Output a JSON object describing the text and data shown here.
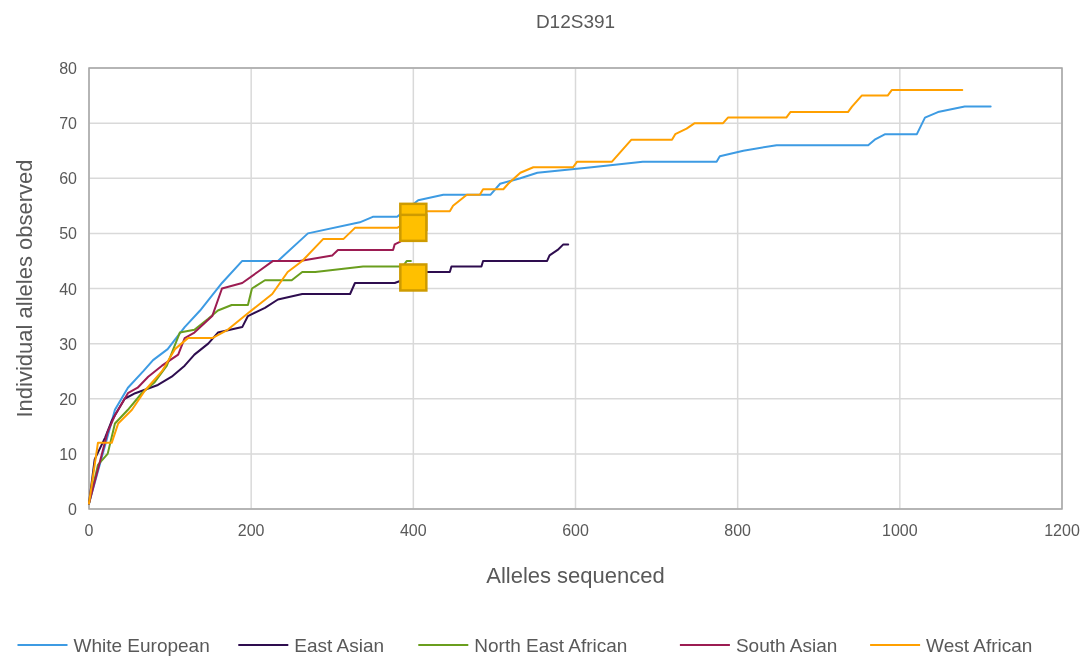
{
  "chart_data": {
    "type": "line",
    "title": "D12S391",
    "xlabel": "Alleles sequenced",
    "ylabel": "Individual alleles observed",
    "xlim": [
      0,
      1200
    ],
    "ylim": [
      0,
      80
    ],
    "xticks": [
      0,
      200,
      400,
      600,
      800,
      1000,
      1200
    ],
    "yticks": [
      0,
      10,
      20,
      30,
      40,
      50,
      60,
      70,
      80
    ],
    "grid": true,
    "legend": "bottom",
    "marker": "none",
    "line_style": "solid",
    "series": [
      {
        "name": "White European",
        "color": "#3d9be3",
        "x": [
          0,
          32,
          48,
          67,
          79,
          97,
          118,
          137,
          164,
          189,
          233,
          270,
          334,
          350,
          380,
          406,
          437,
          495,
          507,
          532,
          553,
          620,
          683,
          774,
          778,
          807,
          848,
          961,
          969,
          982,
          1021,
          1031,
          1047,
          1080,
          1112
        ],
        "values": [
          1,
          18,
          22,
          25,
          27,
          29,
          33,
          36,
          41,
          45,
          45,
          50,
          52,
          53,
          53,
          56,
          57,
          57,
          59,
          60,
          61,
          62,
          63,
          63,
          64,
          65,
          66,
          66,
          67,
          68,
          68,
          71,
          72,
          73,
          73
        ]
      },
      {
        "name": "East Asian",
        "color": "#2e0d4f",
        "x": [
          0,
          7,
          20,
          28,
          44,
          57,
          85,
          102,
          118,
          130,
          147,
          159,
          189,
          196,
          217,
          233,
          263,
          322,
          328,
          377,
          414,
          445,
          447,
          484,
          486,
          565,
          568,
          578,
          585,
          591
        ],
        "values": [
          1,
          9,
          13,
          16,
          20,
          21,
          22.5,
          24,
          26,
          28,
          30,
          32,
          33,
          35,
          36.5,
          38,
          39,
          39,
          41,
          41,
          43,
          43,
          44,
          44,
          45,
          45,
          46,
          47,
          48,
          48
        ]
      },
      {
        "name": "North East African",
        "color": "#6a9e1e",
        "x": [
          0,
          11,
          23,
          32,
          48,
          65,
          81,
          96,
          112,
          130,
          147,
          159,
          176,
          196,
          201,
          217,
          250,
          263,
          279,
          338,
          387,
          392,
          397
        ],
        "values": [
          1,
          8,
          10,
          15.5,
          18,
          21,
          23,
          26,
          32,
          32.5,
          34.5,
          36,
          37,
          37,
          40,
          41.5,
          41.5,
          43,
          43,
          44,
          44,
          45,
          45
        ]
      },
      {
        "name": "South Asian",
        "color": "#9c1c52",
        "x": [
          0,
          16,
          23,
          32,
          48,
          60,
          73,
          90,
          110,
          118,
          130,
          152,
          164,
          189,
          208,
          227,
          260,
          300,
          307,
          375,
          377,
          384,
          387
        ],
        "values": [
          1,
          10,
          14,
          17,
          21,
          22,
          24,
          26,
          28,
          31,
          32,
          35,
          40,
          41,
          43,
          45,
          45,
          46,
          47,
          47,
          48,
          48.5,
          49
        ]
      },
      {
        "name": "West African",
        "color": "#ffa000",
        "x": [
          0,
          11,
          28,
          36,
          53,
          69,
          90,
          106,
          122,
          152,
          171,
          196,
          226,
          245,
          263,
          289,
          314,
          328,
          380,
          417,
          445,
          449,
          466,
          482,
          486,
          511,
          517,
          532,
          548,
          597,
          602,
          645,
          657,
          669,
          719,
          723,
          737,
          747,
          782,
          788,
          860,
          865,
          936,
          941,
          953,
          985,
          990,
          1077
        ],
        "values": [
          1,
          12,
          12,
          15.5,
          18,
          21.5,
          25,
          29,
          31,
          31,
          32.5,
          35.5,
          39,
          43,
          45,
          49,
          49,
          51,
          51,
          54,
          54,
          55,
          57,
          57,
          58,
          58,
          59,
          61,
          62,
          62,
          63,
          63,
          65,
          67,
          67,
          68,
          69,
          70,
          70,
          71,
          71,
          72,
          72,
          73,
          75,
          75,
          76,
          76
        ]
      },
      {
        "type": "scatter",
        "marker": "square",
        "color": "#ffc000",
        "x": [
          400,
          400,
          400
        ],
        "values": [
          53,
          51,
          42
        ]
      }
    ]
  }
}
